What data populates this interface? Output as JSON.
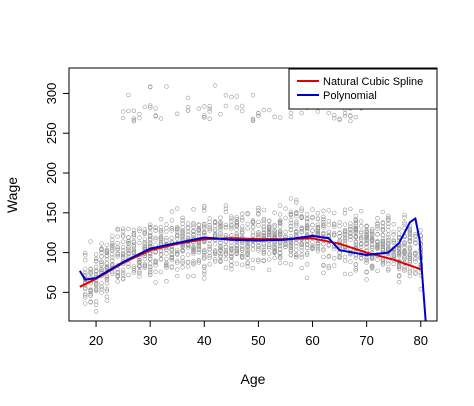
{
  "chart_data": {
    "type": "scatter",
    "xlabel": "Age",
    "ylabel": "Wage",
    "xlim": [
      15,
      83
    ],
    "ylim": [
      14,
      332
    ],
    "x_ticks": [
      20,
      30,
      40,
      50,
      60,
      70,
      80
    ],
    "y_ticks": [
      50,
      100,
      150,
      200,
      250,
      300
    ],
    "grid": false,
    "legend_position": "top-right",
    "colors": {
      "points": "#9a9a9a",
      "spline": "#e00000",
      "poly": "#0000cc",
      "axis": "#000000"
    },
    "series": [
      {
        "name": "Natural Cubic Spline",
        "type": "line",
        "x": [
          17,
          20,
          25,
          30,
          35,
          40,
          45,
          50,
          55,
          60,
          65,
          70,
          75,
          80
        ],
        "y": [
          57,
          67,
          87,
          103,
          111,
          117,
          118,
          117,
          117,
          118,
          111,
          100,
          91,
          79
        ]
      },
      {
        "name": "Polynomial",
        "type": "line",
        "x": [
          17,
          18,
          20,
          25,
          30,
          35,
          40,
          45,
          50,
          55,
          60,
          63,
          65,
          70,
          74,
          76,
          78,
          79,
          79.8,
          80.4,
          81
        ],
        "y": [
          77,
          66,
          68,
          88,
          105,
          112,
          119,
          116,
          115,
          116,
          121,
          118,
          103,
          97,
          100,
          112,
          138,
          143,
          115,
          60,
          5
        ]
      }
    ],
    "scatter_points_note_free": true
  }
}
